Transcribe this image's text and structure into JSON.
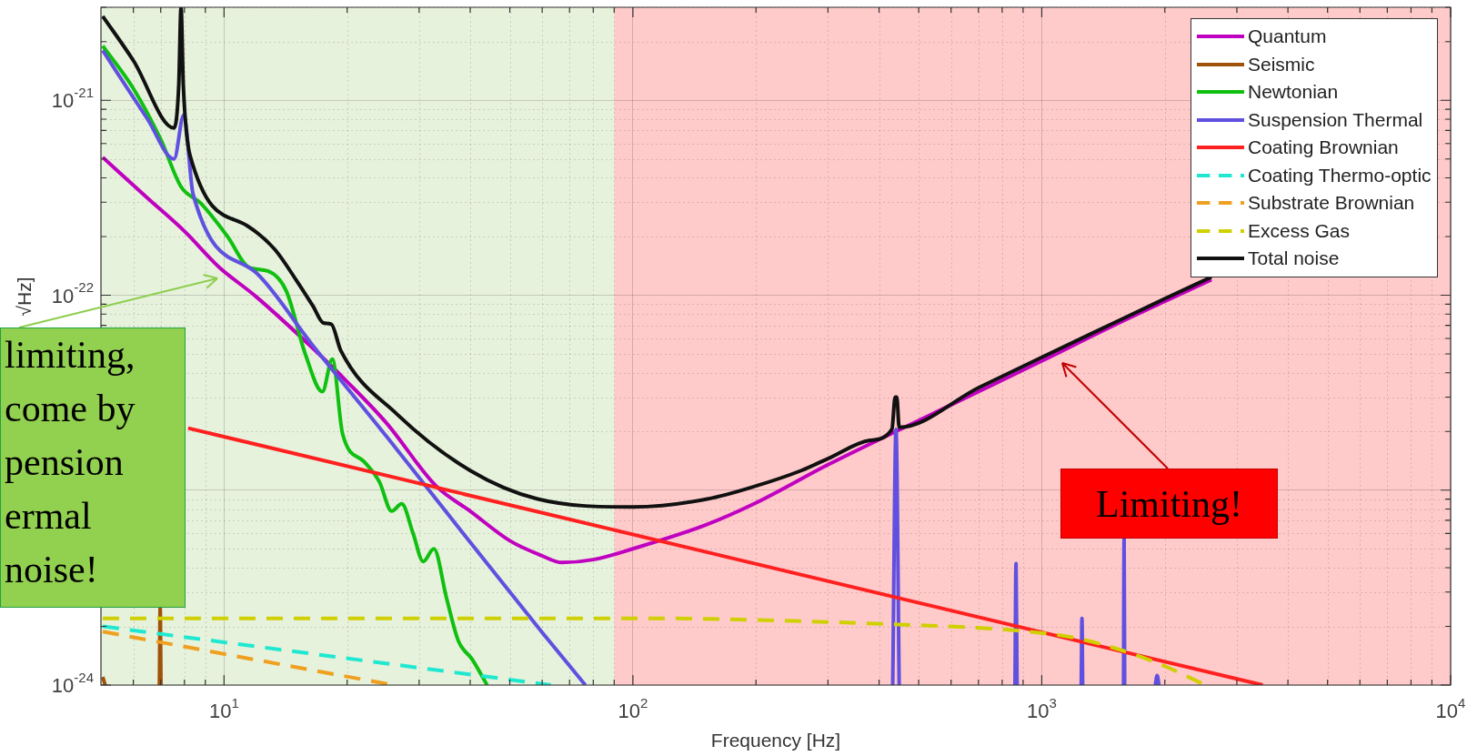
{
  "chart_data": {
    "type": "line",
    "xlabel": "Frequency [Hz]",
    "ylabel": "√Hz]",
    "log": "xy",
    "grid": true,
    "legend": "top right",
    "xlim": [
      5,
      10000
    ],
    "ylim": [
      1e-24,
      3e-21
    ],
    "xticks": [
      {
        "value": 10,
        "label": "10$^{1}$"
      },
      {
        "value": 100,
        "label": "10$^{2}$"
      },
      {
        "value": 1000,
        "label": "10$^{3}$"
      },
      {
        "value": 10000,
        "label": "10$^{4}$"
      }
    ],
    "yticks": [
      {
        "value": 1e-24,
        "label": "10$^{-24}$"
      },
      {
        "value": 1e-23,
        "label": null
      },
      {
        "value": 1e-22,
        "label": "10$^{-22}$"
      },
      {
        "value": 1e-21,
        "label": "10$^{-21}$"
      }
    ],
    "bands": [
      {
        "axis": "x",
        "from": 5,
        "to": 90,
        "color": "#e6f2dc"
      },
      {
        "axis": "x",
        "from": 90,
        "to": 10000,
        "color": "#ffcaca"
      }
    ],
    "annotations": [
      "limiting,\ncome by\npension\nermal\nnoise!",
      "Limiting!"
    ],
    "series": [
      {
        "name": "Quantum",
        "color": "#c000c0",
        "x": [
          5.05,
          6.5,
          8,
          9.7,
          12,
          16.4,
          20,
          25,
          33,
          40,
          50,
          60,
          67,
          80,
          100,
          150,
          200,
          300,
          440,
          700,
          1000,
          1500,
          2000,
          2600
        ],
        "values": [
          5.1e-22,
          3.15e-22,
          2.13e-22,
          1.4e-22,
          9.8e-23,
          5.4e-23,
          3.6e-23,
          2.2e-23,
          1.05e-23,
          7.8e-24,
          5.5e-24,
          4.6e-24,
          4.25e-24,
          4.4e-24,
          5e-24,
          6.6e-24,
          8.6e-24,
          1.35e-23,
          2e-23,
          3.2e-23,
          4.6e-23,
          7e-23,
          9.3e-23,
          1.2e-22
        ]
      },
      {
        "name": "Seismic",
        "color": "#a0520a",
        "x": [
          5.05,
          5.12,
          6,
          6.95,
          6.98,
          7.01
        ],
        "values": [
          1.1e-24,
          1e-24,
          null,
          1e-24,
          2.5e-24,
          1e-24
        ]
      },
      {
        "name": "Newtonian",
        "color": "#10c010",
        "x": [
          5.05,
          6,
          7,
          7.85,
          8.76,
          10.2,
          11.5,
          12.8,
          14.2,
          15.8,
          17.4,
          18.4,
          19.5,
          22,
          24,
          25.7,
          27.2,
          29,
          30.7,
          32.6,
          35,
          37.4,
          40.5,
          44
        ],
        "values": [
          1.9e-21,
          1.15e-21,
          6.3e-22,
          3.6e-22,
          2.97e-22,
          2e-22,
          1.39e-22,
          1.33e-22,
          1.05e-22,
          5e-23,
          3.2e-23,
          4.7e-23,
          1.94e-23,
          1.4e-23,
          1.1e-23,
          7.8e-24,
          8.5e-24,
          6e-24,
          4.3e-24,
          5e-24,
          2.8e-24,
          1.69e-24,
          1.35e-24,
          1e-24
        ]
      },
      {
        "name": "Suspension Thermal",
        "color": "#6050e0",
        "x": [
          5.05,
          6.5,
          7.55,
          7.97,
          8.4,
          12,
          16.4,
          25,
          40,
          60,
          76.5,
          200,
          432,
          440,
          448,
          600,
          860,
          865,
          870,
          1000,
          1249,
          1254,
          1259,
          1400,
          1585,
          1590,
          1595,
          1750,
          1895,
          1915,
          1935
        ],
        "values": [
          1.8e-21,
          8e-22,
          5e-22,
          8.4e-22,
          3.3e-22,
          1.3e-22,
          5.6e-23,
          1.88e-23,
          5.4e-24,
          1.86e-24,
          1e-24,
          null,
          1e-24,
          2.05e-23,
          1e-24,
          null,
          1e-24,
          4.2e-24,
          1e-24,
          null,
          1e-24,
          2.2e-24,
          1e-24,
          null,
          1e-24,
          5.7e-24,
          1e-24,
          null,
          1e-24,
          1.12e-24,
          1e-24
        ]
      },
      {
        "name": "Coating Brownian",
        "color": "#ff2020",
        "x": [
          8.17,
          3470
        ],
        "values": [
          2.08e-23,
          1e-24
        ]
      },
      {
        "name": "Coating Thermo-optic",
        "color": "#20e8d0",
        "line_style": "dashed",
        "x": [
          5.05,
          63
        ],
        "values": [
          2e-24,
          1e-24
        ]
      },
      {
        "name": "Substrate Brownian",
        "color": "#f0a020",
        "line_style": "dashed",
        "x": [
          5.05,
          25.9
        ],
        "values": [
          1.88e-24,
          1e-24
        ]
      },
      {
        "name": "Excess Gas",
        "color": "#d0d000",
        "line_style": "dashed",
        "x": [
          5.05,
          100,
          432,
          879,
          1200,
          1580,
          2000,
          2510
        ],
        "values": [
          2.2e-24,
          2.2e-24,
          2.05e-24,
          1.9e-24,
          1.75e-24,
          1.5e-24,
          1.25e-24,
          1e-24
        ]
      },
      {
        "name": "Total noise",
        "color": "#111111",
        "x": [
          5.05,
          6,
          7.55,
          7.75,
          7.85,
          7.95,
          8.26,
          11.4,
          13.3,
          15,
          16.5,
          17.5,
          18.3,
          19.3,
          26.5,
          40,
          58.5,
          100,
          152,
          200,
          258,
          300,
          380,
          430,
          438,
          442,
          448,
          700,
          1000,
          1500,
          2000,
          2600
        ],
        "values": [
          2.7e-21,
          1.6e-21,
          7.2e-22,
          1.2e-21,
          3e-21,
          1.2e-21,
          5.2e-22,
          2.27e-22,
          1.72e-22,
          1.2e-22,
          8.8e-23,
          7.2e-23,
          7.1e-23,
          5.2e-23,
          2.45e-23,
          1.26e-23,
          9e-24,
          8.2e-24,
          9e-24,
          1.05e-23,
          1.26e-23,
          1.45e-23,
          1.8e-23,
          2.05e-23,
          3e-23,
          3e-23,
          2.1e-23,
          3.35e-23,
          4.8e-23,
          7.2e-23,
          9.6e-23,
          1.24e-22
        ]
      }
    ]
  }
}
